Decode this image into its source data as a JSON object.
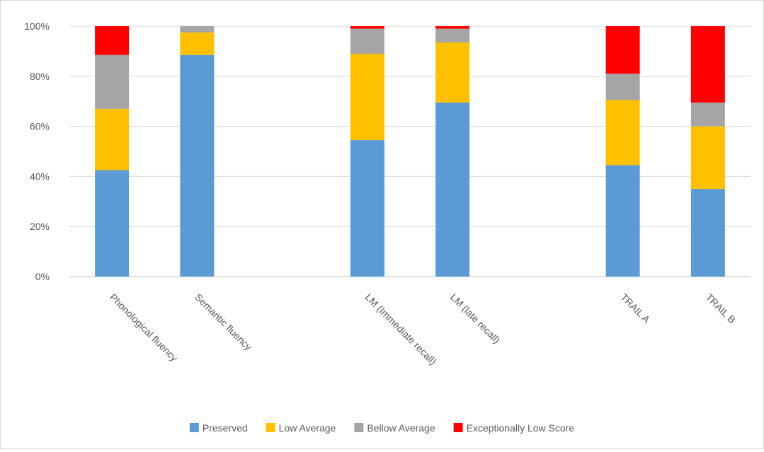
{
  "chart_data": {
    "type": "bar",
    "stacked": true,
    "percent": true,
    "categories": [
      "Phonological fluency",
      "Semantic fluency",
      "",
      "LM (Immediate recall)",
      "LM (late recall)",
      "",
      "TRAIL A",
      "TRAIL B"
    ],
    "series": [
      {
        "name": "Preserved",
        "color": "#5b9bd5",
        "values": [
          42.5,
          88.5,
          null,
          54.5,
          69.5,
          null,
          44.5,
          35
        ]
      },
      {
        "name": "Low Average",
        "color": "#ffc000",
        "values": [
          24.5,
          9,
          null,
          34.5,
          24,
          null,
          26,
          25
        ]
      },
      {
        "name": "Bellow Average",
        "color": "#a5a5a5",
        "values": [
          21.5,
          2.5,
          null,
          10,
          5.5,
          null,
          10.5,
          9.5
        ]
      },
      {
        "name": "Exceptionally Low Score",
        "color": "#ff0000",
        "values": [
          11.5,
          0,
          null,
          1,
          1,
          null,
          19,
          30.5
        ]
      }
    ],
    "yticks": [
      "0%",
      "20%",
      "40%",
      "60%",
      "80%",
      "100%"
    ],
    "ylim": [
      0,
      100
    ],
    "grid": true,
    "legend_position": "bottom"
  }
}
